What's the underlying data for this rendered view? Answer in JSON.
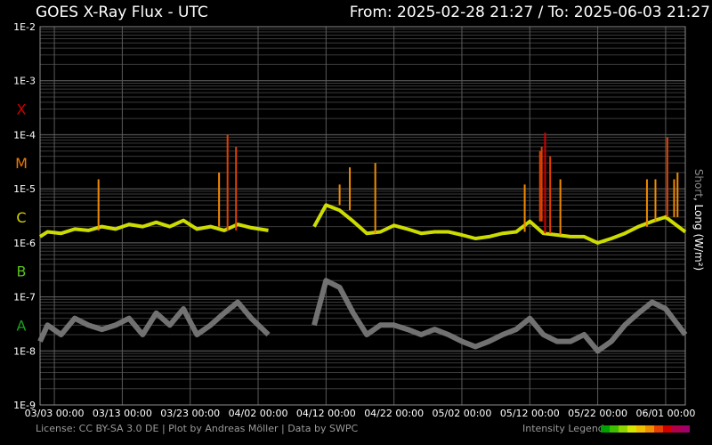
{
  "header": {
    "title": "GOES X-Ray Flux - UTC",
    "range_text": "From: 2025-02-28 21:27  /  To: 2025-06-03 21:27"
  },
  "footer": {
    "credits": "License: CC BY-SA 3.0 DE | Plot by Andreas Möller | Data by SWPC",
    "legend_label": "Intensity Legend",
    "legend_colors": [
      "#00a000",
      "#3fbf00",
      "#8fd400",
      "#d6e600",
      "#f0c000",
      "#f09000",
      "#e84000",
      "#d00000",
      "#b0004a",
      "#a0006a"
    ]
  },
  "axis_label": {
    "short": "Short",
    "long": ", Long (W/m²)"
  },
  "chart_data": {
    "type": "line",
    "title": "GOES X-Ray Flux - UTC",
    "ylabel": "Short, Long (W/m²)",
    "y_scale": "log",
    "ylim": [
      1e-09,
      0.01
    ],
    "y_tick_labels": [
      "1E-9",
      "1E-8",
      "1E-7",
      "1E-6",
      "1E-5",
      "1E-4",
      "1E-3",
      "1E-2"
    ],
    "y_tick_values": [
      1e-09,
      1e-08,
      1e-07,
      1e-06,
      1e-05,
      0.0001,
      0.001,
      0.01
    ],
    "flare_classes": [
      {
        "label": "A",
        "color": "#1aa31a",
        "value": 3e-08
      },
      {
        "label": "B",
        "color": "#5abf1a",
        "value": 3e-07
      },
      {
        "label": "C",
        "color": "#d4d400",
        "value": 3e-06
      },
      {
        "label": "M",
        "color": "#f07800",
        "value": 3e-05
      },
      {
        "label": "X",
        "color": "#d00000",
        "value": 0.0003
      }
    ],
    "x_start": "2025-02-28T21:27",
    "x_end": "2025-06-03T21:27",
    "x_tick_labels": [
      "03/03 00:00",
      "03/13 00:00",
      "03/23 00:00",
      "04/02 00:00",
      "04/12 00:00",
      "04/22 00:00",
      "05/02 00:00",
      "05/12 00:00",
      "05/22 00:00",
      "06/01 00:00"
    ],
    "x_tick_dates": [
      "2025-03-03T00:00",
      "2025-03-13T00:00",
      "2025-03-23T00:00",
      "2025-04-02T00:00",
      "2025-04-12T00:00",
      "2025-04-22T00:00",
      "2025-05-02T00:00",
      "2025-05-12T00:00",
      "2025-05-22T00:00",
      "2025-06-01T00:00"
    ],
    "grid": true,
    "data_gap": [
      "2025-04-04T00:00",
      "2025-04-10T06:00"
    ],
    "series": [
      {
        "name": "Long",
        "color": "#d8e800",
        "x": [
          "2025-02-28T21:27",
          "2025-03-02T00:00",
          "2025-03-04T00:00",
          "2025-03-06T00:00",
          "2025-03-08T00:00",
          "2025-03-10T00:00",
          "2025-03-12T00:00",
          "2025-03-14T00:00",
          "2025-03-16T00:00",
          "2025-03-18T00:00",
          "2025-03-20T00:00",
          "2025-03-22T00:00",
          "2025-03-24T00:00",
          "2025-03-26T00:00",
          "2025-03-28T00:00",
          "2025-03-30T00:00",
          "2025-04-01T00:00",
          "2025-04-03T12:00",
          "2025-04-10T06:00",
          "2025-04-12T00:00",
          "2025-04-14T00:00",
          "2025-04-16T00:00",
          "2025-04-18T00:00",
          "2025-04-20T00:00",
          "2025-04-22T00:00",
          "2025-04-24T00:00",
          "2025-04-26T00:00",
          "2025-04-28T00:00",
          "2025-04-30T00:00",
          "2025-05-02T00:00",
          "2025-05-04T00:00",
          "2025-05-06T00:00",
          "2025-05-08T00:00",
          "2025-05-10T00:00",
          "2025-05-12T00:00",
          "2025-05-14T00:00",
          "2025-05-16T00:00",
          "2025-05-18T00:00",
          "2025-05-20T00:00",
          "2025-05-22T00:00",
          "2025-05-24T00:00",
          "2025-05-26T00:00",
          "2025-05-28T00:00",
          "2025-05-30T00:00",
          "2025-06-01T00:00",
          "2025-06-03T21:27"
        ],
        "y": [
          1.3e-06,
          1.6e-06,
          1.5e-06,
          1.8e-06,
          1.7e-06,
          2e-06,
          1.8e-06,
          2.2e-06,
          2e-06,
          2.4e-06,
          2e-06,
          2.6e-06,
          1.8e-06,
          2e-06,
          1.7e-06,
          2.2e-06,
          1.9e-06,
          1.7e-06,
          2e-06,
          5e-06,
          4e-06,
          2.5e-06,
          1.5e-06,
          1.6e-06,
          2.1e-06,
          1.8e-06,
          1.5e-06,
          1.6e-06,
          1.6e-06,
          1.4e-06,
          1.2e-06,
          1.3e-06,
          1.5e-06,
          1.6e-06,
          2.5e-06,
          1.5e-06,
          1.4e-06,
          1.3e-06,
          1.3e-06,
          1e-06,
          1.2e-06,
          1.5e-06,
          2e-06,
          2.5e-06,
          3e-06,
          1.6e-06
        ]
      },
      {
        "name": "Short",
        "color": "#777777",
        "x": [
          "2025-02-28T21:27",
          "2025-03-02T00:00",
          "2025-03-04T00:00",
          "2025-03-06T00:00",
          "2025-03-08T00:00",
          "2025-03-10T00:00",
          "2025-03-12T00:00",
          "2025-03-14T00:00",
          "2025-03-16T00:00",
          "2025-03-18T00:00",
          "2025-03-20T00:00",
          "2025-03-22T00:00",
          "2025-03-24T00:00",
          "2025-03-26T00:00",
          "2025-03-28T00:00",
          "2025-03-30T00:00",
          "2025-04-01T00:00",
          "2025-04-03T12:00",
          "2025-04-10T06:00",
          "2025-04-12T00:00",
          "2025-04-14T00:00",
          "2025-04-16T00:00",
          "2025-04-18T00:00",
          "2025-04-20T00:00",
          "2025-04-22T00:00",
          "2025-04-24T00:00",
          "2025-04-26T00:00",
          "2025-04-28T00:00",
          "2025-04-30T00:00",
          "2025-05-02T00:00",
          "2025-05-04T00:00",
          "2025-05-06T00:00",
          "2025-05-08T00:00",
          "2025-05-10T00:00",
          "2025-05-12T00:00",
          "2025-05-14T00:00",
          "2025-05-16T00:00",
          "2025-05-18T00:00",
          "2025-05-20T00:00",
          "2025-05-22T00:00",
          "2025-05-24T00:00",
          "2025-05-26T00:00",
          "2025-05-28T00:00",
          "2025-05-30T00:00",
          "2025-06-01T00:00",
          "2025-06-03T21:27"
        ],
        "y": [
          1.5e-08,
          3e-08,
          2e-08,
          4e-08,
          3e-08,
          2.5e-08,
          3e-08,
          4e-08,
          2e-08,
          5e-08,
          3e-08,
          6e-08,
          2e-08,
          3e-08,
          5e-08,
          8e-08,
          4e-08,
          2e-08,
          3e-08,
          2e-07,
          1.5e-07,
          5e-08,
          2e-08,
          3e-08,
          3e-08,
          2.5e-08,
          2e-08,
          2.5e-08,
          2e-08,
          1.5e-08,
          1.2e-08,
          1.5e-08,
          2e-08,
          2.5e-08,
          4e-08,
          2e-08,
          1.5e-08,
          1.5e-08,
          2e-08,
          1e-08,
          1.5e-08,
          3e-08,
          5e-08,
          8e-08,
          6e-08,
          2e-08
        ]
      }
    ],
    "flares": [
      {
        "x": "2025-03-28T12:00",
        "peak": 0.0001,
        "class": "M"
      },
      {
        "x": "2025-03-29T18:00",
        "peak": 6e-05,
        "class": "M"
      },
      {
        "x": "2025-03-27T06:00",
        "peak": 2e-05,
        "class": "M"
      },
      {
        "x": "2025-03-09T12:00",
        "peak": 1.5e-05,
        "class": "M"
      },
      {
        "x": "2025-04-15T12:00",
        "peak": 2.5e-05,
        "class": "M"
      },
      {
        "x": "2025-04-14T00:00",
        "peak": 1.2e-05,
        "class": "M"
      },
      {
        "x": "2025-04-19T06:00",
        "peak": 3e-05,
        "class": "M"
      },
      {
        "x": "2025-05-11T06:00",
        "peak": 1.2e-05,
        "class": "M"
      },
      {
        "x": "2025-05-13T12:00",
        "peak": 5e-05,
        "class": "M"
      },
      {
        "x": "2025-05-14T06:00",
        "peak": 0.00011,
        "class": "X"
      },
      {
        "x": "2025-05-13T18:00",
        "peak": 6e-05,
        "class": "M"
      },
      {
        "x": "2025-05-15T00:00",
        "peak": 4e-05,
        "class": "M"
      },
      {
        "x": "2025-05-16T12:00",
        "peak": 1.5e-05,
        "class": "M"
      },
      {
        "x": "2025-05-29T06:00",
        "peak": 1.5e-05,
        "class": "M"
      },
      {
        "x": "2025-05-30T12:00",
        "peak": 1.5e-05,
        "class": "M"
      },
      {
        "x": "2025-06-01T06:00",
        "peak": 9e-05,
        "class": "M"
      },
      {
        "x": "2025-06-02T06:00",
        "peak": 1.5e-05,
        "class": "M"
      },
      {
        "x": "2025-06-02T18:00",
        "peak": 2e-05,
        "class": "M"
      }
    ]
  }
}
